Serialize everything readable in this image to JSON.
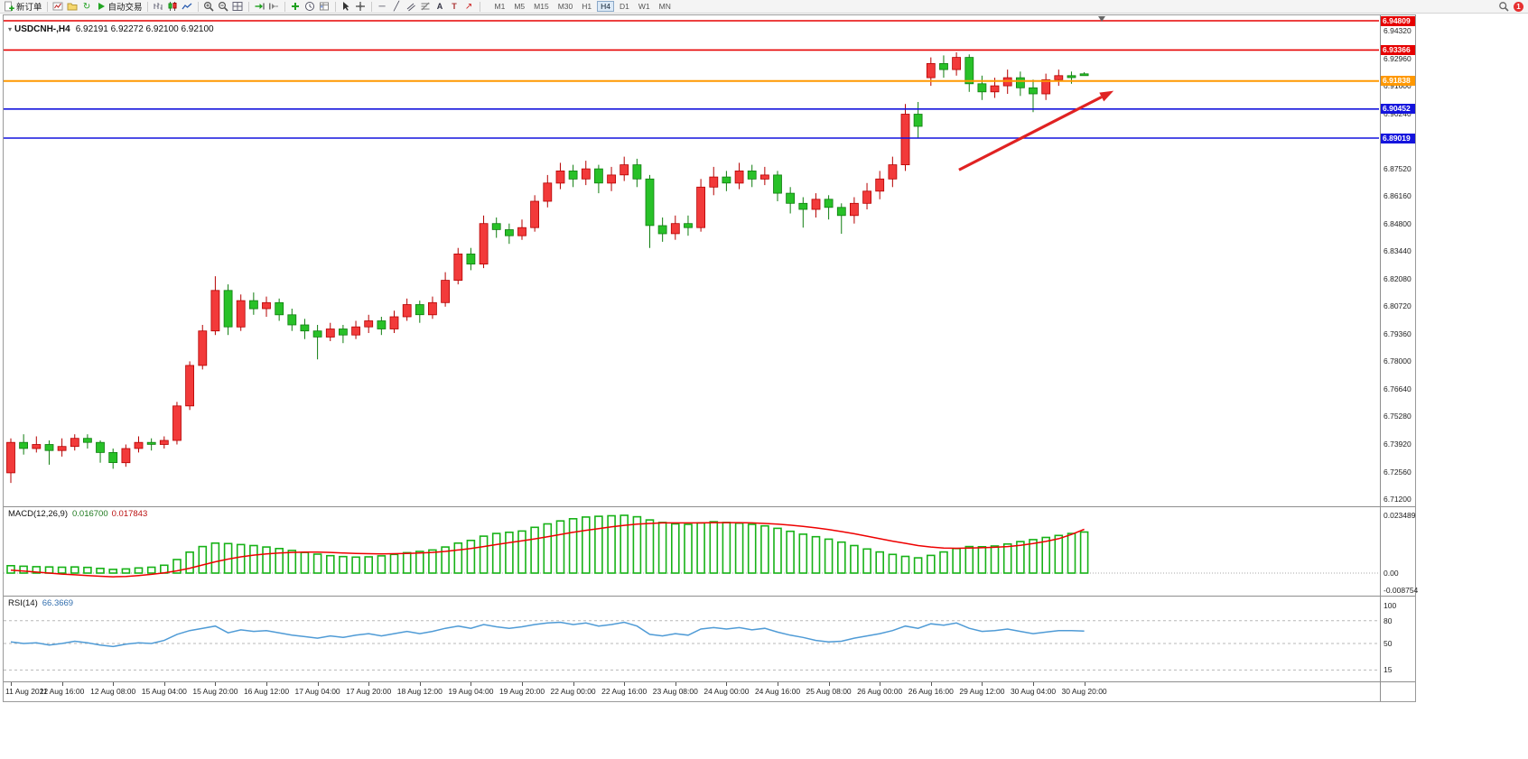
{
  "icons": {
    "refresh": "↻",
    "hline": "─",
    "trendline": "╱",
    "text": "A",
    "label": "T",
    "arrow_tool": "↗",
    "one_click": "▾"
  },
  "toolbar": {
    "new_order": "新订单",
    "auto_trading": "自动交易",
    "timeframes": [
      "M1",
      "M5",
      "M15",
      "M30",
      "H1",
      "H4",
      "D1",
      "W1",
      "MN"
    ],
    "active_timeframe": "H4",
    "notification_count": "1"
  },
  "chart_data": {
    "type": "candlestick",
    "symbol_timeframe": "USDCNH-,H4",
    "ohlc_display": "6.92191 6.92272 6.92100 6.92100",
    "open": "6.92191",
    "high": "6.92272",
    "low": "6.92100",
    "close": "6.92100",
    "colors": {
      "up": "#f23a3a",
      "up_border": "#b50000",
      "down": "#28c128",
      "down_border": "#0f7d0f",
      "macd_hist": "#17b217",
      "macd_signal": "#ee0000",
      "rsi": "#4f9bd6",
      "arrow": "#e02222"
    },
    "price_axis_labels": [
      "6.94320",
      "6.92960",
      "6.91600",
      "6.90240",
      "6.88880",
      "6.87520",
      "6.86160",
      "6.84800",
      "6.83440",
      "6.82080",
      "6.80720",
      "6.79360",
      "6.78000",
      "6.76640",
      "6.75280",
      "6.73920",
      "6.72560",
      "6.71200"
    ],
    "hlines": [
      {
        "price": 6.94809,
        "label": "6.94809",
        "color": "#e60000",
        "width": 1.4
      },
      {
        "price": 6.93366,
        "label": "6.93366",
        "color": "#e60000",
        "width": 1.6
      },
      {
        "price": 6.91838,
        "label": "6.91838",
        "color": "#ff9800",
        "width": 2
      },
      {
        "price": 6.90452,
        "label": "6.90452",
        "color": "#1414dd",
        "width": 1.6
      },
      {
        "price": 6.89019,
        "label": "6.89019",
        "color": "#1414dd",
        "width": 1.6
      }
    ],
    "arrow": {
      "from": {
        "index": 74.2,
        "price": 6.8745
      },
      "to": {
        "index": 86.3,
        "price": 6.9135
      }
    },
    "time_labels": [
      "11 Aug 2022",
      "11 Aug 16:00",
      "12 Aug 08:00",
      "15 Aug 04:00",
      "15 Aug 20:00",
      "16 Aug 12:00",
      "17 Aug 04:00",
      "17 Aug 20:00",
      "18 Aug 12:00",
      "19 Aug 04:00",
      "19 Aug 20:00",
      "22 Aug 00:00",
      "22 Aug 16:00",
      "23 Aug 08:00",
      "24 Aug 00:00",
      "24 Aug 16:00",
      "25 Aug 08:00",
      "26 Aug 00:00",
      "26 Aug 16:00",
      "29 Aug 12:00",
      "30 Aug 04:00",
      "30 Aug 20:00"
    ],
    "candles_format": [
      "open",
      "high",
      "low",
      "close"
    ],
    "candles": [
      [
        6.725,
        6.742,
        6.72,
        6.74
      ],
      [
        6.74,
        6.744,
        6.734,
        6.737
      ],
      [
        6.737,
        6.743,
        6.735,
        6.739
      ],
      [
        6.739,
        6.741,
        6.729,
        6.736
      ],
      [
        6.736,
        6.742,
        6.733,
        6.738
      ],
      [
        6.738,
        6.744,
        6.736,
        6.742
      ],
      [
        6.742,
        6.744,
        6.737,
        6.74
      ],
      [
        6.74,
        6.741,
        6.73,
        6.735
      ],
      [
        6.735,
        6.737,
        6.727,
        6.73
      ],
      [
        6.73,
        6.739,
        6.728,
        6.737
      ],
      [
        6.737,
        6.743,
        6.735,
        6.74
      ],
      [
        6.74,
        6.742,
        6.736,
        6.739
      ],
      [
        6.739,
        6.743,
        6.737,
        6.741
      ],
      [
        6.741,
        6.76,
        6.739,
        6.758
      ],
      [
        6.758,
        6.78,
        6.756,
        6.778
      ],
      [
        6.778,
        6.798,
        6.776,
        6.795
      ],
      [
        6.795,
        6.822,
        6.793,
        6.815
      ],
      [
        6.815,
        6.818,
        6.793,
        6.797
      ],
      [
        6.797,
        6.813,
        6.795,
        6.81
      ],
      [
        6.81,
        6.814,
        6.803,
        6.806
      ],
      [
        6.806,
        6.812,
        6.802,
        6.809
      ],
      [
        6.809,
        6.811,
        6.8,
        6.803
      ],
      [
        6.803,
        6.806,
        6.795,
        6.798
      ],
      [
        6.798,
        6.801,
        6.791,
        6.795
      ],
      [
        6.795,
        6.798,
        6.781,
        6.792
      ],
      [
        6.792,
        6.799,
        6.79,
        6.796
      ],
      [
        6.796,
        6.798,
        6.789,
        6.793
      ],
      [
        6.793,
        6.8,
        6.791,
        6.797
      ],
      [
        6.797,
        6.803,
        6.794,
        6.8
      ],
      [
        6.8,
        6.802,
        6.793,
        6.796
      ],
      [
        6.796,
        6.805,
        6.794,
        6.802
      ],
      [
        6.802,
        6.811,
        6.8,
        6.808
      ],
      [
        6.808,
        6.81,
        6.799,
        6.803
      ],
      [
        6.803,
        6.812,
        6.801,
        6.809
      ],
      [
        6.809,
        6.824,
        6.807,
        6.82
      ],
      [
        6.82,
        6.836,
        6.818,
        6.833
      ],
      [
        6.833,
        6.836,
        6.825,
        6.828
      ],
      [
        6.828,
        6.852,
        6.826,
        6.848
      ],
      [
        6.848,
        6.851,
        6.841,
        6.845
      ],
      [
        6.845,
        6.848,
        6.838,
        6.842
      ],
      [
        6.842,
        6.85,
        6.84,
        6.846
      ],
      [
        6.846,
        6.862,
        6.844,
        6.859
      ],
      [
        6.859,
        6.872,
        6.856,
        6.868
      ],
      [
        6.868,
        6.878,
        6.865,
        6.874
      ],
      [
        6.874,
        6.877,
        6.866,
        6.87
      ],
      [
        6.87,
        6.879,
        6.867,
        6.875
      ],
      [
        6.875,
        6.877,
        6.863,
        6.868
      ],
      [
        6.868,
        6.876,
        6.864,
        6.872
      ],
      [
        6.872,
        6.881,
        6.869,
        6.877
      ],
      [
        6.877,
        6.88,
        6.866,
        6.87
      ],
      [
        6.87,
        6.872,
        6.836,
        6.847
      ],
      [
        6.847,
        6.851,
        6.839,
        6.843
      ],
      [
        6.843,
        6.852,
        6.84,
        6.848
      ],
      [
        6.848,
        6.852,
        6.842,
        6.846
      ],
      [
        6.846,
        6.87,
        6.844,
        6.866
      ],
      [
        6.866,
        6.876,
        6.862,
        6.871
      ],
      [
        6.871,
        6.874,
        6.864,
        6.868
      ],
      [
        6.868,
        6.878,
        6.865,
        6.874
      ],
      [
        6.874,
        6.877,
        6.866,
        6.87
      ],
      [
        6.87,
        6.876,
        6.867,
        6.872
      ],
      [
        6.872,
        6.874,
        6.859,
        6.863
      ],
      [
        6.863,
        6.866,
        6.853,
        6.858
      ],
      [
        6.858,
        6.861,
        6.846,
        6.855
      ],
      [
        6.855,
        6.863,
        6.851,
        6.86
      ],
      [
        6.86,
        6.862,
        6.85,
        6.856
      ],
      [
        6.856,
        6.858,
        6.843,
        6.852
      ],
      [
        6.852,
        6.861,
        6.848,
        6.858
      ],
      [
        6.858,
        6.868,
        6.855,
        6.864
      ],
      [
        6.864,
        6.874,
        6.86,
        6.87
      ],
      [
        6.87,
        6.881,
        6.866,
        6.877
      ],
      [
        6.877,
        6.907,
        6.874,
        6.902
      ],
      [
        6.902,
        6.908,
        6.89,
        6.896
      ],
      [
        6.92,
        6.93,
        6.916,
        6.927
      ],
      [
        6.927,
        6.931,
        6.92,
        6.924
      ],
      [
        6.924,
        6.9325,
        6.921,
        6.93
      ],
      [
        6.93,
        6.9315,
        6.913,
        6.917
      ],
      [
        6.917,
        6.921,
        6.909,
        6.913
      ],
      [
        6.913,
        6.92,
        6.91,
        6.916
      ],
      [
        6.916,
        6.924,
        6.912,
        6.92
      ],
      [
        6.92,
        6.923,
        6.911,
        6.915
      ],
      [
        6.915,
        6.919,
        6.903,
        6.912
      ],
      [
        6.912,
        6.922,
        6.909,
        6.919
      ],
      [
        6.919,
        6.924,
        6.916,
        6.921
      ],
      [
        6.921,
        6.923,
        6.917,
        6.92
      ],
      [
        6.92191,
        6.92272,
        6.921,
        6.921
      ]
    ],
    "macd": {
      "label": "MACD(12,26,9)",
      "value": "0.016700",
      "signal_value": "0.017843",
      "axis": [
        {
          "label": "0.023489",
          "value": 0.023489
        },
        {
          "label": "0.00",
          "value": 0
        },
        {
          "label": "-0.008754",
          "value": -0.008754
        }
      ],
      "histogram": [
        0.003,
        0.0028,
        0.0026,
        0.0025,
        0.0024,
        0.0025,
        0.0023,
        0.0019,
        0.0015,
        0.0017,
        0.0021,
        0.0024,
        0.0032,
        0.0055,
        0.0085,
        0.0108,
        0.0122,
        0.012,
        0.0116,
        0.0112,
        0.0106,
        0.01,
        0.0092,
        0.0084,
        0.0077,
        0.0071,
        0.0067,
        0.0065,
        0.0066,
        0.007,
        0.0076,
        0.0083,
        0.0088,
        0.0094,
        0.0106,
        0.0122,
        0.0133,
        0.015,
        0.0161,
        0.0166,
        0.0171,
        0.0186,
        0.02,
        0.0212,
        0.0221,
        0.0228,
        0.0231,
        0.0233,
        0.0235,
        0.0229,
        0.0216,
        0.0206,
        0.02,
        0.0198,
        0.0204,
        0.0209,
        0.0206,
        0.0203,
        0.0198,
        0.0192,
        0.0182,
        0.017,
        0.0158,
        0.0148,
        0.0138,
        0.0126,
        0.0112,
        0.0098,
        0.0086,
        0.0076,
        0.0068,
        0.0062,
        0.0072,
        0.0086,
        0.01,
        0.0108,
        0.0107,
        0.011,
        0.0118,
        0.0128,
        0.0136,
        0.0145,
        0.0153,
        0.0161,
        0.0167
      ],
      "signal": [
        0.0012,
        0.0008,
        0.0004,
        0.0,
        -0.0004,
        -0.0007,
        -0.001,
        -0.0013,
        -0.0015,
        -0.0014,
        -0.001,
        -0.0005,
        0.0001,
        0.0009,
        0.002,
        0.0033,
        0.0046,
        0.0057,
        0.0066,
        0.0073,
        0.0078,
        0.0082,
        0.0084,
        0.0085,
        0.0085,
        0.0084,
        0.0082,
        0.008,
        0.0079,
        0.0078,
        0.0079,
        0.008,
        0.0082,
        0.0084,
        0.0088,
        0.0094,
        0.01,
        0.0108,
        0.0116,
        0.0124,
        0.0131,
        0.0139,
        0.0148,
        0.0157,
        0.0166,
        0.0174,
        0.0181,
        0.0188,
        0.0194,
        0.0199,
        0.0202,
        0.0204,
        0.0204,
        0.0204,
        0.0204,
        0.0205,
        0.0205,
        0.0205,
        0.0204,
        0.0202,
        0.0199,
        0.0195,
        0.019,
        0.0184,
        0.0177,
        0.0169,
        0.016,
        0.015,
        0.014,
        0.013,
        0.0121,
        0.0112,
        0.0106,
        0.0102,
        0.0101,
        0.0102,
        0.0103,
        0.0105,
        0.0108,
        0.0113,
        0.012,
        0.0129,
        0.014,
        0.0157,
        0.0178
      ]
    },
    "rsi": {
      "label": "RSI(14)",
      "value": "66.3669",
      "axis": [
        {
          "label": "100",
          "value": 100
        },
        {
          "label": "80",
          "value": 80
        },
        {
          "label": "50",
          "value": 50
        },
        {
          "label": "15",
          "value": 15
        }
      ],
      "levels": [
        80,
        50,
        15
      ],
      "values": [
        52,
        50,
        51,
        48,
        50,
        53,
        51,
        48,
        46,
        49,
        51,
        50,
        54,
        62,
        67,
        70,
        73,
        64,
        68,
        66,
        67,
        64,
        61,
        59,
        57,
        60,
        58,
        61,
        63,
        60,
        63,
        66,
        63,
        66,
        70,
        73,
        70,
        75,
        72,
        70,
        72,
        75,
        77,
        78,
        75,
        77,
        73,
        75,
        78,
        73,
        62,
        60,
        63,
        61,
        69,
        71,
        69,
        71,
        68,
        70,
        65,
        61,
        58,
        54,
        52,
        53,
        57,
        60,
        63,
        67,
        73,
        70,
        76,
        74,
        77,
        70,
        66,
        67,
        69,
        66,
        63,
        65,
        67,
        67,
        66.4
      ]
    }
  }
}
